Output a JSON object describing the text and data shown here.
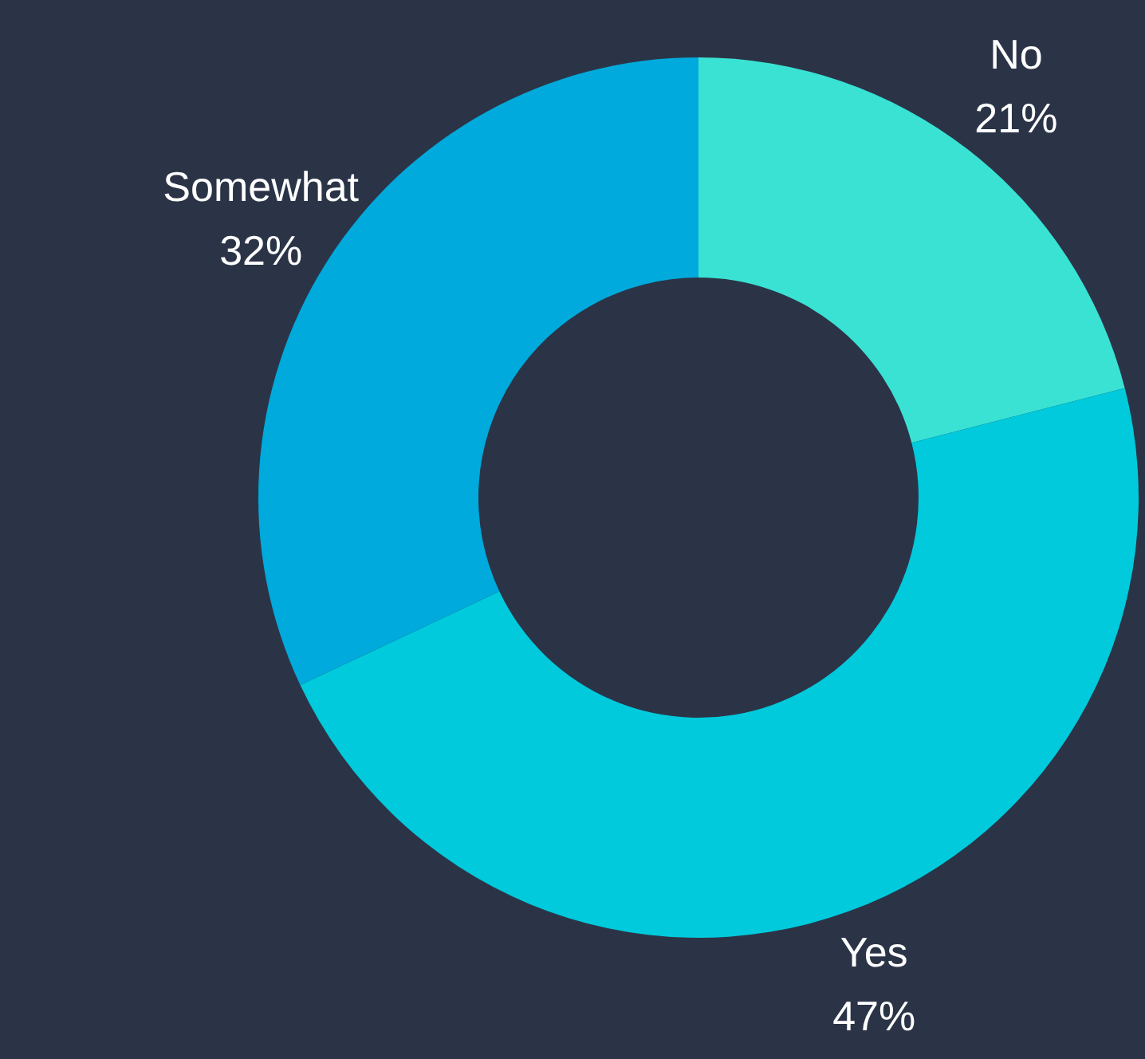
{
  "chart_data": {
    "type": "donut",
    "categories": [
      "No",
      "Yes",
      "Somewhat"
    ],
    "values": [
      21,
      47,
      32
    ],
    "value_labels": [
      "21%",
      "47%",
      "32%"
    ],
    "colors": [
      "#3ae2d4",
      "#00cadc",
      "#00aadc"
    ],
    "legend": false
  }
}
